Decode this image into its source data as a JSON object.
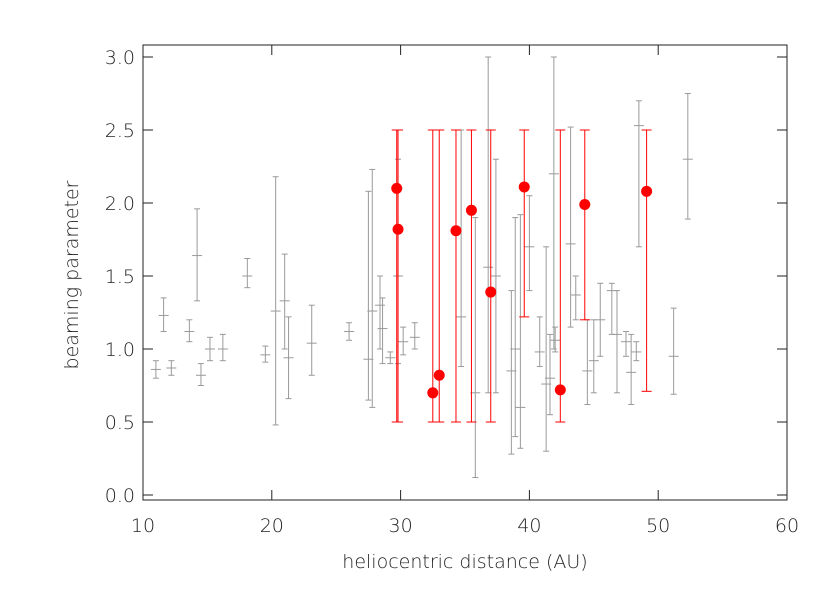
{
  "chart_data": {
    "type": "errorbar-scatter",
    "xlabel": "heliocentric distance (AU)",
    "ylabel": "beaming parameter",
    "xlim": [
      10,
      60
    ],
    "xticks": [
      10,
      20,
      30,
      40,
      50,
      60
    ],
    "ylim": [
      0,
      3
    ],
    "yticks": [
      {
        "value": 0,
        "label": "0.0"
      },
      0.5,
      {
        "value": 1,
        "label": "1.0"
      },
      1.5,
      {
        "value": 2,
        "label": "2.0"
      },
      2.5,
      {
        "value": 3,
        "label": "3.0"
      }
    ],
    "series": [
      {
        "color": "#9a9a9a",
        "marker": "cross",
        "x": [
          11,
          11.6,
          12.2,
          13.6,
          14.2,
          14.5,
          15.2,
          16.2,
          18.1,
          19.5,
          20.3,
          21.0,
          21.3,
          23.1,
          26.0,
          27.5,
          27.8,
          28.4,
          28.6,
          29.2,
          29.8,
          30.2,
          31.1,
          34.7,
          35.8,
          36.8,
          37.4,
          38.6,
          38.9,
          39.3,
          40.0,
          40.8,
          41.3,
          41.6,
          41.9,
          42.0,
          43.2,
          43.6,
          44.5,
          45.0,
          45.5,
          46.4,
          46.8,
          47.5,
          47.9,
          48.3,
          48.5,
          51.2,
          52.3
        ],
        "values": [
          0.86,
          1.23,
          0.87,
          1.12,
          1.64,
          0.82,
          1.0,
          1.0,
          1.5,
          0.96,
          1.26,
          1.33,
          0.94,
          1.04,
          1.12,
          0.93,
          1.26,
          1.3,
          1.14,
          0.94,
          1.5,
          1.05,
          1.08,
          1.22,
          0.7,
          1.56,
          1.5,
          0.85,
          1.0,
          0.6,
          1.7,
          0.98,
          0.76,
          0.8,
          2.2,
          1.06,
          1.72,
          1.37,
          0.85,
          0.92,
          1.2,
          1.4,
          1.1,
          1.05,
          0.84,
          0.98,
          2.53,
          0.95,
          2.3
        ],
        "lower": [
          0.8,
          1.12,
          0.82,
          1.05,
          1.33,
          0.75,
          0.92,
          0.92,
          1.42,
          0.91,
          0.48,
          1.0,
          0.66,
          0.82,
          1.06,
          0.65,
          0.6,
          1.0,
          0.9,
          0.9,
          0.9,
          0.96,
          1.0,
          0.88,
          0.12,
          0.7,
          0.7,
          0.28,
          0.4,
          0.32,
          1.4,
          0.88,
          0.3,
          0.55,
          1.0,
          0.98,
          1.15,
          1.2,
          0.62,
          0.7,
          0.95,
          1.1,
          0.7,
          0.95,
          0.62,
          0.92,
          1.7,
          0.69,
          1.89
        ],
        "upper": [
          0.92,
          1.35,
          0.92,
          1.2,
          1.96,
          0.9,
          1.08,
          1.1,
          1.62,
          1.02,
          2.18,
          1.65,
          1.22,
          1.3,
          1.18,
          2.08,
          2.23,
          1.5,
          1.35,
          0.98,
          2.3,
          1.15,
          1.18,
          2.5,
          1.9,
          3.0,
          2.3,
          1.4,
          1.9,
          1.92,
          2.05,
          1.22,
          1.7,
          1.1,
          3.0,
          1.15,
          2.52,
          1.5,
          1.2,
          1.2,
          1.45,
          1.45,
          1.4,
          1.12,
          1.1,
          1.05,
          2.7,
          1.28,
          2.75
        ]
      },
      {
        "color": "#ff0000",
        "marker": "dot",
        "x": [
          29.7,
          29.8,
          32.5,
          33.0,
          34.3,
          35.5,
          37.0,
          39.6,
          42.4,
          44.3,
          49.1
        ],
        "values": [
          2.1,
          1.82,
          0.7,
          0.82,
          1.81,
          1.95,
          1.39,
          2.11,
          0.72,
          1.99,
          2.08
        ],
        "lower": [
          0.5,
          0.5,
          0.5,
          0.5,
          0.5,
          0.5,
          0.5,
          1.22,
          0.5,
          1.2,
          0.71
        ],
        "upper": [
          2.5,
          2.5,
          2.5,
          2.5,
          2.5,
          2.5,
          2.5,
          2.5,
          2.5,
          2.5,
          2.5
        ]
      }
    ]
  }
}
